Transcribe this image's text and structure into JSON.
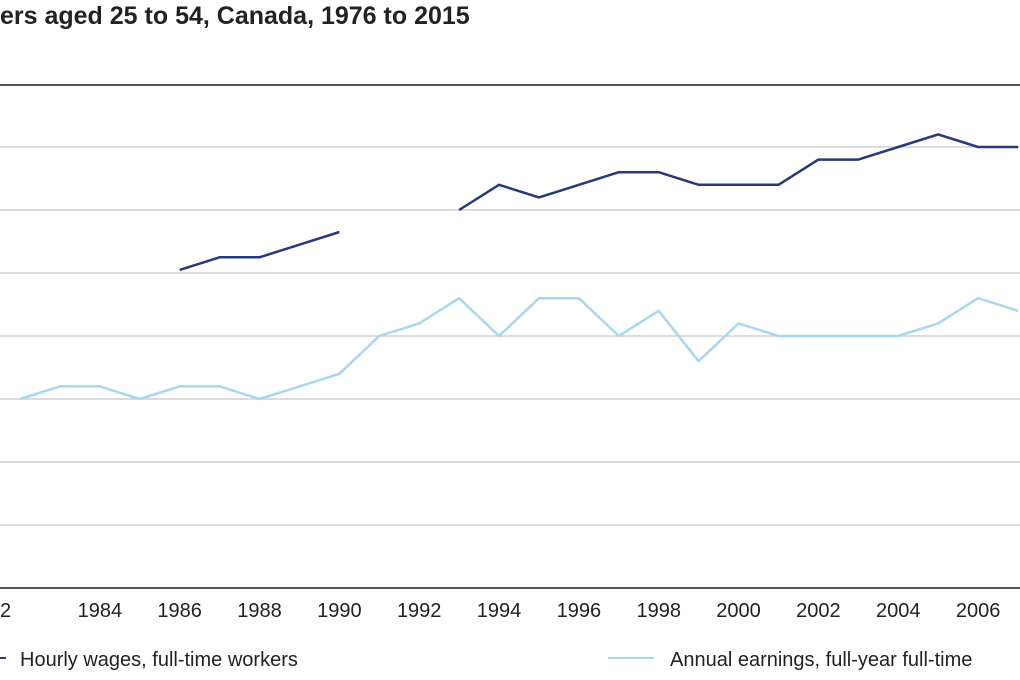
{
  "chart_data": {
    "type": "line",
    "title": "ers aged 25 to 54, Canada, 1976 to 2015",
    "xlabel": "",
    "ylabel": "",
    "xlim": [
      1982,
      2007
    ],
    "grid_lines": 8,
    "grid": true,
    "legend_position": "bottom",
    "x_tick_labels": [
      "2",
      "1984",
      "1986",
      "1988",
      "1990",
      "1992",
      "1994",
      "1996",
      "1998",
      "2000",
      "2002",
      "2004",
      "2006"
    ],
    "series": [
      {
        "name": "Hourly wages, full-time workers",
        "legend_label": "Hourly wages, full-time workers",
        "color": "#243a7a",
        "points": [
          [
            1986,
            0.205
          ],
          [
            1987,
            0.225
          ],
          [
            1988,
            0.225
          ],
          [
            1989,
            0.245
          ],
          [
            1990,
            0.265
          ],
          null,
          [
            1993,
            0.3
          ],
          [
            1994,
            0.34
          ],
          [
            1995,
            0.32
          ],
          [
            1996,
            0.34
          ],
          [
            1997,
            0.36
          ],
          [
            1998,
            0.36
          ],
          [
            1999,
            0.34
          ],
          [
            2000,
            0.34
          ],
          [
            2001,
            0.34
          ],
          [
            2002,
            0.38
          ],
          [
            2003,
            0.38
          ],
          [
            2004,
            0.4
          ],
          [
            2005,
            0.42
          ],
          [
            2006,
            0.4
          ],
          [
            2007,
            0.4
          ]
        ]
      },
      {
        "name": "Annual earnings, full-year full-time",
        "legend_label": "Annual earnings, full-year full-time",
        "color": "#a8d8ee",
        "points": [
          [
            1982,
            0.0
          ],
          [
            1983,
            0.02
          ],
          [
            1984,
            0.02
          ],
          [
            1985,
            0.0
          ],
          [
            1986,
            0.02
          ],
          [
            1987,
            0.02
          ],
          [
            1988,
            0.0
          ],
          [
            1989,
            0.02
          ],
          [
            1990,
            0.04
          ],
          [
            1991,
            0.1
          ],
          [
            1992,
            0.12
          ],
          [
            1993,
            0.16
          ],
          [
            1994,
            0.1
          ],
          [
            1995,
            0.16
          ],
          [
            1996,
            0.16
          ],
          [
            1997,
            0.1
          ],
          [
            1998,
            0.14
          ],
          [
            1999,
            0.06
          ],
          [
            2000,
            0.12
          ],
          [
            2001,
            0.1
          ],
          [
            2002,
            0.1
          ],
          [
            2003,
            0.1
          ],
          [
            2004,
            0.1
          ],
          [
            2005,
            0.12
          ],
          [
            2006,
            0.16
          ],
          [
            2007,
            0.14
          ]
        ]
      }
    ]
  }
}
